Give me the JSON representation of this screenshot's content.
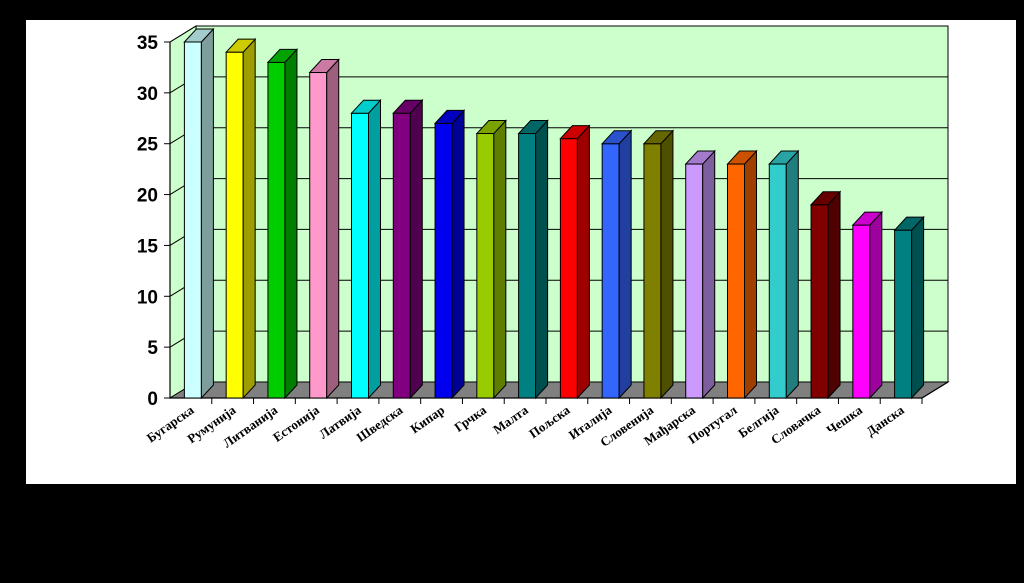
{
  "chart_data": {
    "type": "bar",
    "title": "",
    "xlabel": "",
    "ylabel": "",
    "ylim": [
      0,
      35
    ],
    "yticks": [
      0,
      5,
      10,
      15,
      20,
      25,
      30,
      35
    ],
    "grid": true,
    "legend": "none",
    "three_d": true,
    "categories": [
      "Бугарска",
      "Румунија",
      "Литванија",
      "Естонија",
      "Латвија",
      "Шведска",
      "Кипар",
      "Грчка",
      "Малта",
      "Пољска",
      "Италија",
      "Словенија",
      "Мађарска",
      "Португал",
      "Белгија",
      "Словачка",
      "Чешка",
      "Данска"
    ],
    "values": [
      35,
      34,
      33,
      32,
      28,
      28,
      27,
      26,
      26,
      25.5,
      25,
      25,
      23,
      23,
      23,
      19,
      17,
      16.5
    ],
    "bar_colors": [
      "#ccffff",
      "#ffff00",
      "#00cc00",
      "#ff99cc",
      "#00ffff",
      "#800080",
      "#0000ee",
      "#99cc00",
      "#008080",
      "#ff0000",
      "#3366ff",
      "#808000",
      "#cc99ff",
      "#ff6600",
      "#33cccc",
      "#800000",
      "#ff00ff",
      "#008080"
    ],
    "wall_color": "#ccffcc",
    "floor_color": "#808080"
  }
}
